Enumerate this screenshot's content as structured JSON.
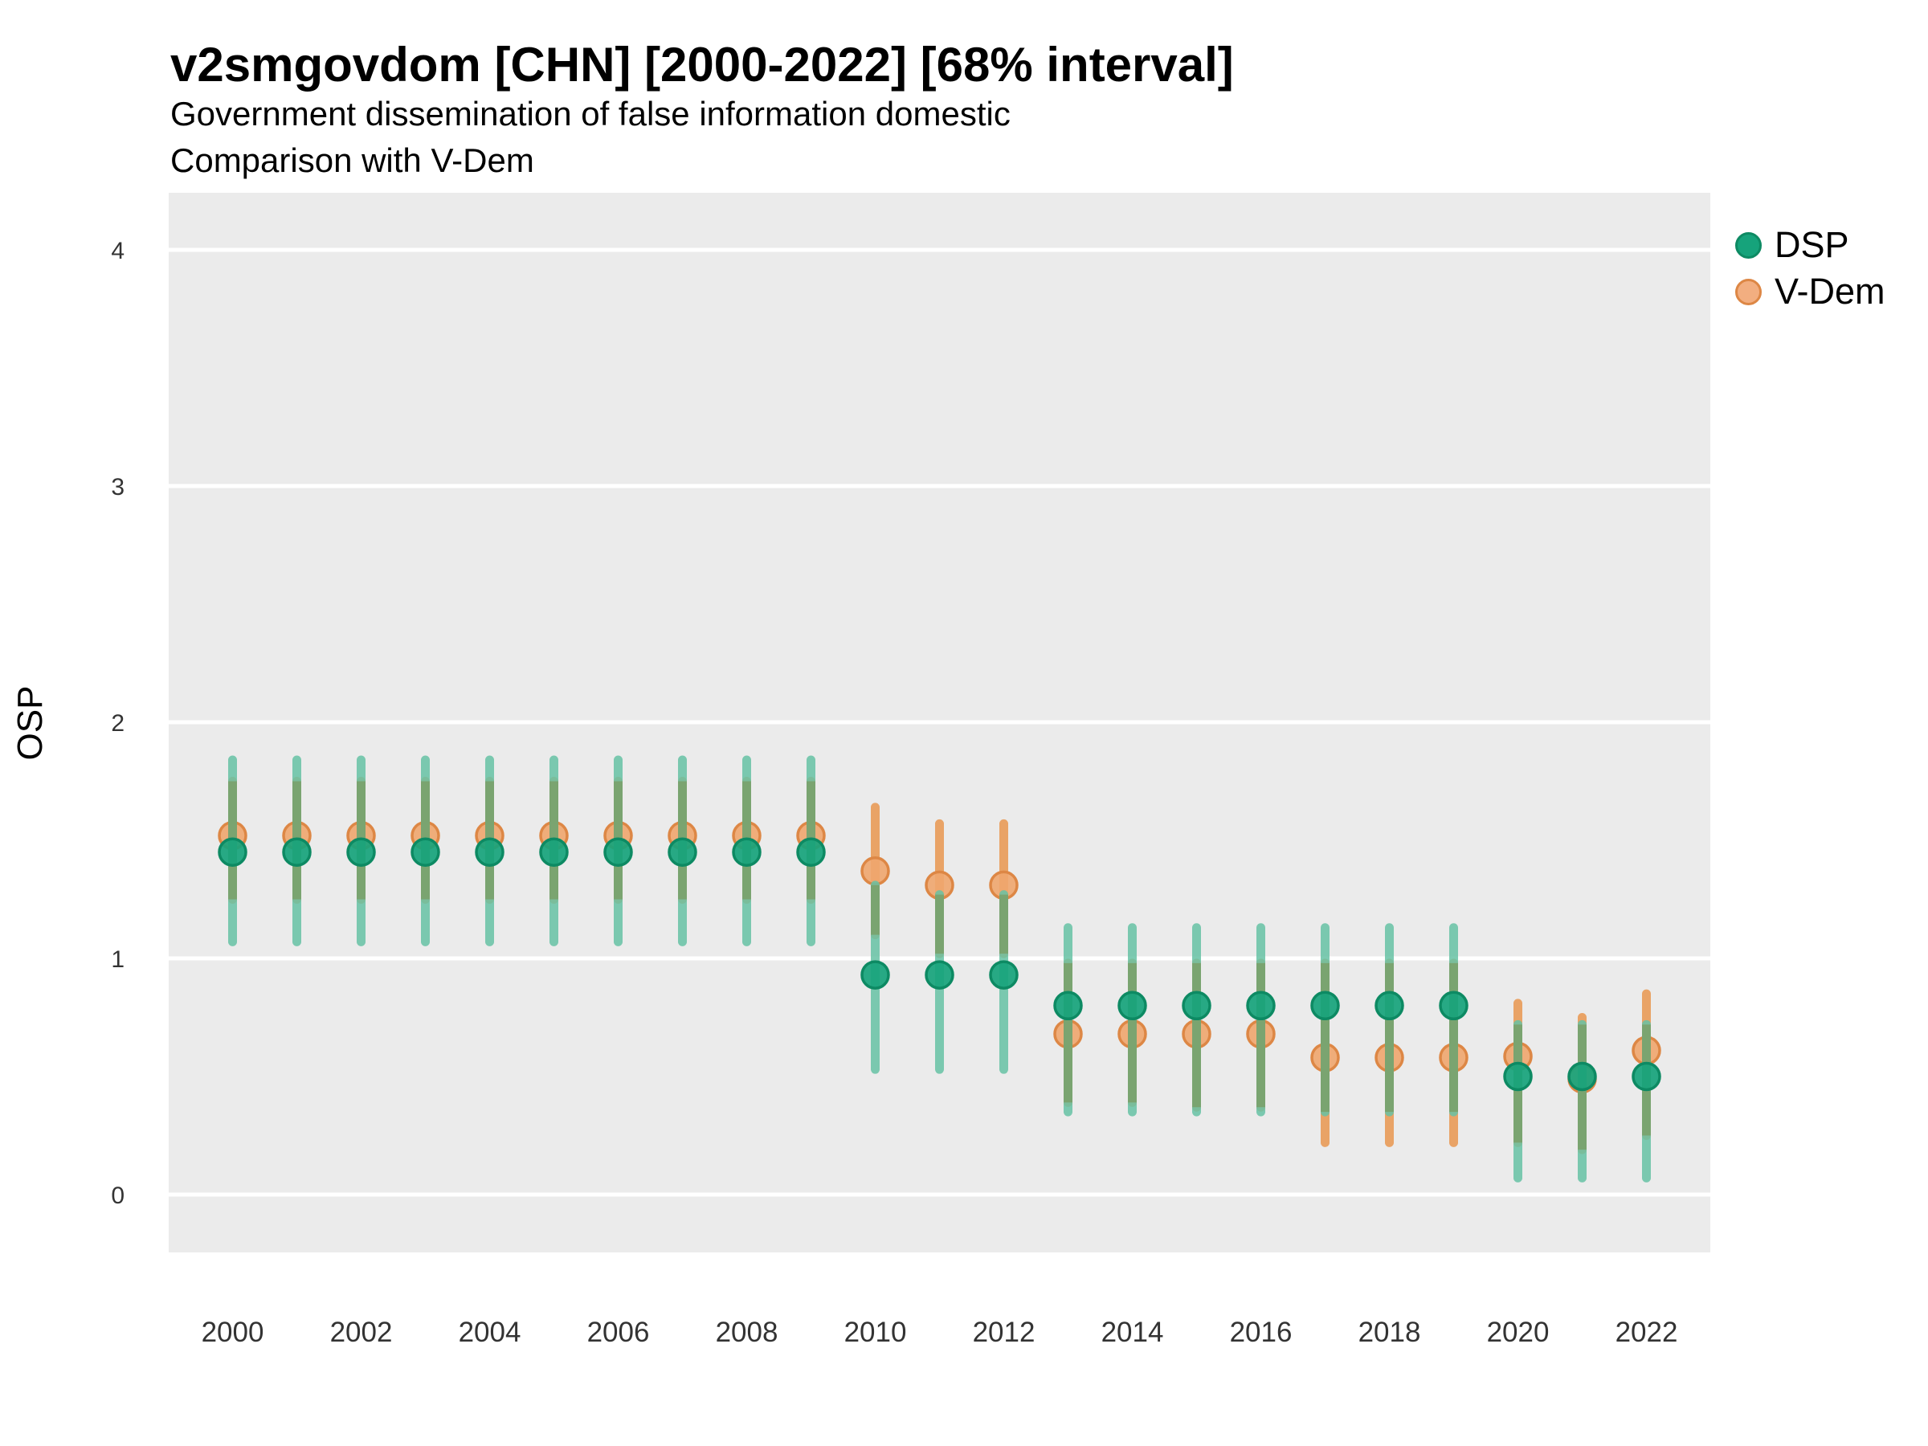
{
  "title": "v2smgovdom [CHN] [2000-2022] [68% interval]",
  "subtitle1": "Government dissemination of false information domestic",
  "subtitle2": "Comparison with V-Dem",
  "ylabel": "OSP",
  "legend": {
    "items": [
      {
        "label": "DSP",
        "fill": "#16a37b",
        "stroke": "#0d8a63"
      },
      {
        "label": "V-Dem",
        "fill": "#f2ae80",
        "stroke": "#dd8745"
      }
    ]
  },
  "colors": {
    "panel_bg": "#ebebeb",
    "gridline": "#ffffff",
    "dsp_bar": "rgba(102,194,165,0.85)",
    "vdem_bar": "rgba(233,150,79,0.85)",
    "overlap_bar": "#7ba26c",
    "dsp_point_fill": "#16a37b",
    "dsp_point_stroke": "#0d8a63",
    "vdem_point_fill": "rgba(240,166,110,0.9)",
    "vdem_point_stroke": "#dd8745",
    "axis_text": "#333333"
  },
  "chart_data": {
    "type": "scatter",
    "title": "v2smgovdom [CHN] [2000-2022] [68% interval]",
    "subtitle": "Government dissemination of false information domestic — Comparison with V-Dem",
    "xlabel": "",
    "ylabel": "OSP",
    "interval": "68%",
    "ylim": [
      -0.25,
      4.25
    ],
    "yticks": [
      0,
      1,
      2,
      3,
      4
    ],
    "xticks": [
      2000,
      2002,
      2004,
      2006,
      2008,
      2010,
      2012,
      2014,
      2016,
      2018,
      2020,
      2022
    ],
    "legend_position": "right",
    "grid": true,
    "series_names": [
      "DSP",
      "V-Dem"
    ],
    "rows": [
      {
        "year": 2000,
        "dsp": 1.45,
        "dsp_lo": 1.07,
        "dsp_hi": 1.84,
        "vdem": 1.52,
        "vdem_lo": 1.25,
        "vdem_hi": 1.75
      },
      {
        "year": 2001,
        "dsp": 1.45,
        "dsp_lo": 1.07,
        "dsp_hi": 1.84,
        "vdem": 1.52,
        "vdem_lo": 1.25,
        "vdem_hi": 1.75
      },
      {
        "year": 2002,
        "dsp": 1.45,
        "dsp_lo": 1.07,
        "dsp_hi": 1.84,
        "vdem": 1.52,
        "vdem_lo": 1.25,
        "vdem_hi": 1.75
      },
      {
        "year": 2003,
        "dsp": 1.45,
        "dsp_lo": 1.07,
        "dsp_hi": 1.84,
        "vdem": 1.52,
        "vdem_lo": 1.25,
        "vdem_hi": 1.75
      },
      {
        "year": 2004,
        "dsp": 1.45,
        "dsp_lo": 1.07,
        "dsp_hi": 1.84,
        "vdem": 1.52,
        "vdem_lo": 1.25,
        "vdem_hi": 1.75
      },
      {
        "year": 2005,
        "dsp": 1.45,
        "dsp_lo": 1.07,
        "dsp_hi": 1.84,
        "vdem": 1.52,
        "vdem_lo": 1.25,
        "vdem_hi": 1.75
      },
      {
        "year": 2006,
        "dsp": 1.45,
        "dsp_lo": 1.07,
        "dsp_hi": 1.84,
        "vdem": 1.52,
        "vdem_lo": 1.25,
        "vdem_hi": 1.75
      },
      {
        "year": 2007,
        "dsp": 1.45,
        "dsp_lo": 1.07,
        "dsp_hi": 1.84,
        "vdem": 1.52,
        "vdem_lo": 1.25,
        "vdem_hi": 1.75
      },
      {
        "year": 2008,
        "dsp": 1.45,
        "dsp_lo": 1.07,
        "dsp_hi": 1.84,
        "vdem": 1.52,
        "vdem_lo": 1.25,
        "vdem_hi": 1.75
      },
      {
        "year": 2009,
        "dsp": 1.45,
        "dsp_lo": 1.07,
        "dsp_hi": 1.84,
        "vdem": 1.52,
        "vdem_lo": 1.25,
        "vdem_hi": 1.75
      },
      {
        "year": 2010,
        "dsp": 0.93,
        "dsp_lo": 0.53,
        "dsp_hi": 1.31,
        "vdem": 1.37,
        "vdem_lo": 1.1,
        "vdem_hi": 1.64
      },
      {
        "year": 2011,
        "dsp": 0.93,
        "dsp_lo": 0.53,
        "dsp_hi": 1.27,
        "vdem": 1.31,
        "vdem_lo": 1.02,
        "vdem_hi": 1.57
      },
      {
        "year": 2012,
        "dsp": 0.93,
        "dsp_lo": 0.53,
        "dsp_hi": 1.27,
        "vdem": 1.31,
        "vdem_lo": 1.02,
        "vdem_hi": 1.57
      },
      {
        "year": 2013,
        "dsp": 0.8,
        "dsp_lo": 0.35,
        "dsp_hi": 1.13,
        "vdem": 0.68,
        "vdem_lo": 0.39,
        "vdem_hi": 0.98
      },
      {
        "year": 2014,
        "dsp": 0.8,
        "dsp_lo": 0.35,
        "dsp_hi": 1.13,
        "vdem": 0.68,
        "vdem_lo": 0.39,
        "vdem_hi": 0.98
      },
      {
        "year": 2015,
        "dsp": 0.8,
        "dsp_lo": 0.35,
        "dsp_hi": 1.13,
        "vdem": 0.68,
        "vdem_lo": 0.37,
        "vdem_hi": 0.98
      },
      {
        "year": 2016,
        "dsp": 0.8,
        "dsp_lo": 0.35,
        "dsp_hi": 1.13,
        "vdem": 0.68,
        "vdem_lo": 0.37,
        "vdem_hi": 0.98
      },
      {
        "year": 2017,
        "dsp": 0.8,
        "dsp_lo": 0.35,
        "dsp_hi": 1.13,
        "vdem": 0.58,
        "vdem_lo": 0.22,
        "vdem_hi": 0.98
      },
      {
        "year": 2018,
        "dsp": 0.8,
        "dsp_lo": 0.35,
        "dsp_hi": 1.13,
        "vdem": 0.58,
        "vdem_lo": 0.22,
        "vdem_hi": 0.98
      },
      {
        "year": 2019,
        "dsp": 0.8,
        "dsp_lo": 0.35,
        "dsp_hi": 1.13,
        "vdem": 0.58,
        "vdem_lo": 0.22,
        "vdem_hi": 0.98
      },
      {
        "year": 2020,
        "dsp": 0.5,
        "dsp_lo": 0.07,
        "dsp_hi": 0.72,
        "vdem": 0.585,
        "vdem_lo": 0.22,
        "vdem_hi": 0.81
      },
      {
        "year": 2021,
        "dsp": 0.5,
        "dsp_lo": 0.07,
        "dsp_hi": 0.72,
        "vdem": 0.49,
        "vdem_lo": 0.19,
        "vdem_hi": 0.75
      },
      {
        "year": 2022,
        "dsp": 0.5,
        "dsp_lo": 0.07,
        "dsp_hi": 0.72,
        "vdem": 0.61,
        "vdem_lo": 0.25,
        "vdem_hi": 0.85
      }
    ]
  }
}
